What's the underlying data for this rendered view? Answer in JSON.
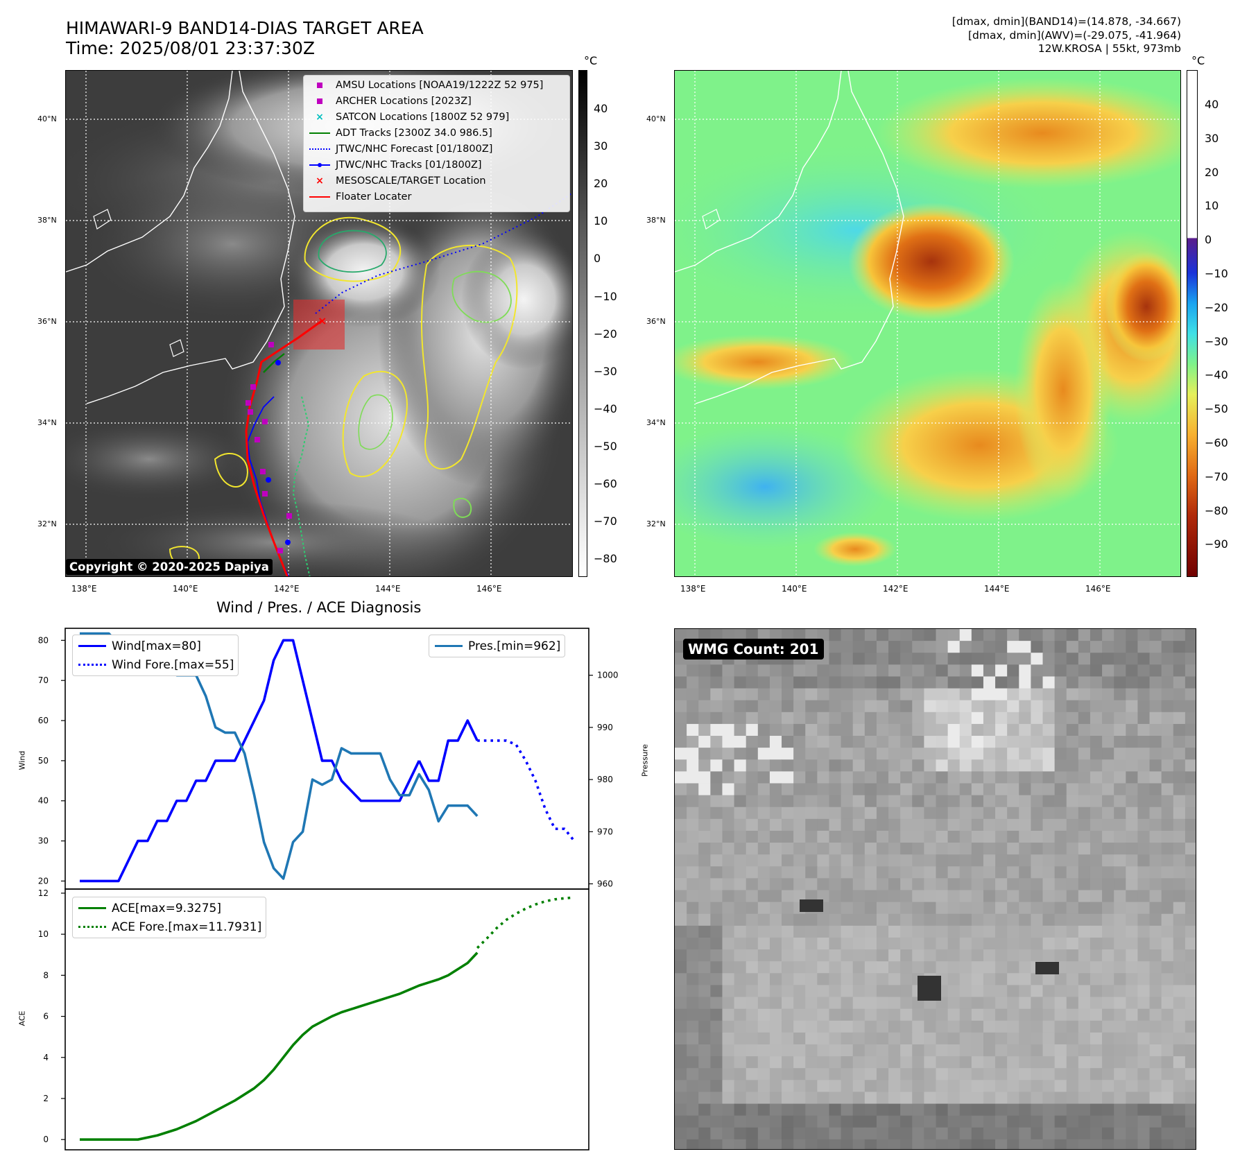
{
  "header": {
    "title_line1": "HIMAWARI-9 BAND14-DIAS TARGET AREA",
    "title_line2": "Time: 2025/08/01 23:37:30Z",
    "right_line1": "[dmax, dmin](BAND14)=(14.878, -34.667)",
    "right_line2": "[dmax, dmin](AWV)=(-29.075, -41.964)",
    "right_line3": "12W.KROSA | 55kt, 973mb"
  },
  "map": {
    "lat_labels": [
      "40°N",
      "38°N",
      "36°N",
      "34°N",
      "32°N"
    ],
    "lon_labels": [
      "138°E",
      "140°E",
      "142°E",
      "144°E",
      "146°E"
    ],
    "copyright": "Copyright © 2020-2025 Dapiya",
    "legend": [
      {
        "label": "AMSU Locations [NOAA19/1222Z 52 975]",
        "symbol": "square",
        "color": "#bf00bf"
      },
      {
        "label": "ARCHER Locations [2023Z]",
        "symbol": "square",
        "color": "#bf00bf"
      },
      {
        "label": "SATCON Locations [1800Z 52 979]",
        "symbol": "x",
        "color": "#00bfbf"
      },
      {
        "label": "ADT Tracks [2300Z 34.0 986.5]",
        "symbol": "line",
        "color": "#008000"
      },
      {
        "label": "JTWC/NHC Forecast [01/1800Z]",
        "symbol": "dotted",
        "color": "#0000ff"
      },
      {
        "label": "JTWC/NHC Tracks [01/1800Z]",
        "symbol": "line-dot",
        "color": "#0000ff"
      },
      {
        "label": "MESOSCALE/TARGET Location",
        "symbol": "x",
        "color": "#ff0000"
      },
      {
        "label": "Floater Locater",
        "symbol": "line",
        "color": "#ff0000"
      }
    ]
  },
  "colorbar_left": {
    "unit": "°C",
    "ticks": [
      "40",
      "30",
      "20",
      "10",
      "0",
      "−10",
      "−20",
      "−30",
      "−40",
      "−50",
      "−60",
      "−70",
      "−80"
    ]
  },
  "colorbar_right": {
    "unit": "°C",
    "ticks": [
      "40",
      "30",
      "20",
      "10",
      "0",
      "−10",
      "−20",
      "−30",
      "−40",
      "−50",
      "−60",
      "−70",
      "−80",
      "−90"
    ]
  },
  "diagnosis": {
    "title": "Wind / Pres. / ACE Diagnosis",
    "wind_ylabel": "Wind",
    "pres_ylabel": "Pressure",
    "ace_ylabel": "ACE",
    "wind_legend": "Wind[max=80]",
    "wind_fore_legend": "Wind Fore.[max=55]",
    "pres_legend": "Pres.[min=962]",
    "ace_legend": "ACE[max=9.3275]",
    "ace_fore_legend": "ACE Fore.[max=11.7931]"
  },
  "wmg": {
    "label": "WMG Count: 201"
  },
  "chart_data": [
    {
      "type": "line",
      "title": "Wind / Pres. / ACE Diagnosis",
      "ylabel": "Wind",
      "ylim": [
        18,
        83
      ],
      "yticks": [
        20,
        30,
        40,
        50,
        60,
        70,
        80
      ],
      "series": [
        {
          "name": "Wind[max=80]",
          "color": "#0000ff",
          "style": "solid",
          "x": [
            0,
            2,
            4,
            6,
            7,
            8,
            9,
            10,
            11,
            12,
            13,
            14,
            16,
            17,
            18,
            19,
            20,
            21,
            22,
            23,
            24,
            25,
            26,
            27,
            29,
            30,
            31,
            32,
            33,
            34,
            35
          ],
          "values": [
            20,
            20,
            20,
            30,
            30,
            35,
            35,
            40,
            40,
            45,
            45,
            50,
            50,
            55,
            60,
            65,
            75,
            80,
            80,
            70,
            60,
            50,
            50,
            45,
            40,
            40,
            40,
            40,
            40,
            45,
            50
          ]
        },
        {
          "name": "Wind[max=80] (cont.)",
          "color": "#0000ff",
          "style": "solid",
          "x": [
            35,
            36,
            37,
            38,
            39,
            40,
            41
          ],
          "values": [
            50,
            45,
            45,
            55,
            55,
            60,
            55
          ]
        },
        {
          "name": "Wind Fore.[max=55]",
          "color": "#0000ff",
          "style": "dotted",
          "x": [
            41,
            43,
            44,
            45,
            46,
            47,
            48,
            49,
            50,
            51
          ],
          "values": [
            55,
            55,
            55,
            54,
            50,
            45,
            38,
            33,
            33,
            30
          ]
        }
      ]
    },
    {
      "type": "line",
      "ylabel": "Pressure",
      "ylim": [
        959,
        1009
      ],
      "yticks": [
        960,
        970,
        980,
        990,
        1000
      ],
      "series": [
        {
          "name": "Pres.[min=962]",
          "color": "#1f77b4",
          "style": "solid",
          "x": [
            0,
            2,
            3,
            4,
            5,
            6,
            7,
            8,
            9,
            10,
            11,
            12,
            13,
            14,
            15,
            16,
            17,
            18,
            19,
            20,
            21,
            22,
            23,
            24,
            25,
            26,
            27,
            28,
            29,
            30,
            31,
            32,
            33,
            34,
            35,
            36,
            37,
            38,
            39,
            40,
            41
          ],
          "values": [
            1008,
            1008,
            1008,
            1006,
            1005,
            1004,
            1004,
            1002,
            1002,
            1000,
            1000,
            1000,
            996,
            990,
            989,
            989,
            985,
            977,
            968,
            963,
            961,
            968,
            970,
            980,
            979,
            980,
            986,
            985,
            985,
            985,
            985,
            980,
            977,
            977,
            981,
            978,
            972,
            975,
            975,
            975,
            973
          ]
        }
      ]
    },
    {
      "type": "line",
      "ylabel": "ACE",
      "ylim": [
        -0.5,
        12.2
      ],
      "yticks": [
        0,
        2,
        4,
        6,
        8,
        10,
        12
      ],
      "series": [
        {
          "name": "ACE[max=9.3275]",
          "color": "#008000",
          "style": "solid",
          "x": [
            0,
            2,
            4,
            5,
            6,
            8,
            10,
            12,
            14,
            16,
            18,
            19,
            20,
            21,
            22,
            23,
            24,
            25,
            26,
            27,
            28,
            29,
            30,
            31,
            32,
            33,
            34,
            35,
            36,
            37,
            38,
            39,
            40,
            41
          ],
          "values": [
            0,
            0,
            0,
            0,
            0,
            0.2,
            0.5,
            0.9,
            1.4,
            1.9,
            2.5,
            2.9,
            3.4,
            4.0,
            4.6,
            5.1,
            5.5,
            5.75,
            6.0,
            6.2,
            6.35,
            6.5,
            6.65,
            6.8,
            6.95,
            7.1,
            7.3,
            7.5,
            7.65,
            7.8,
            8.0,
            8.3,
            8.6,
            9.1
          ]
        },
        {
          "name": "ACE Fore.[max=11.7931]",
          "color": "#008000",
          "style": "dotted",
          "x": [
            41,
            42,
            43,
            44,
            45,
            46,
            47,
            48,
            49,
            50,
            51
          ],
          "values": [
            9.33,
            9.8,
            10.3,
            10.7,
            11.0,
            11.25,
            11.45,
            11.6,
            11.7,
            11.75,
            11.79
          ]
        }
      ]
    }
  ]
}
